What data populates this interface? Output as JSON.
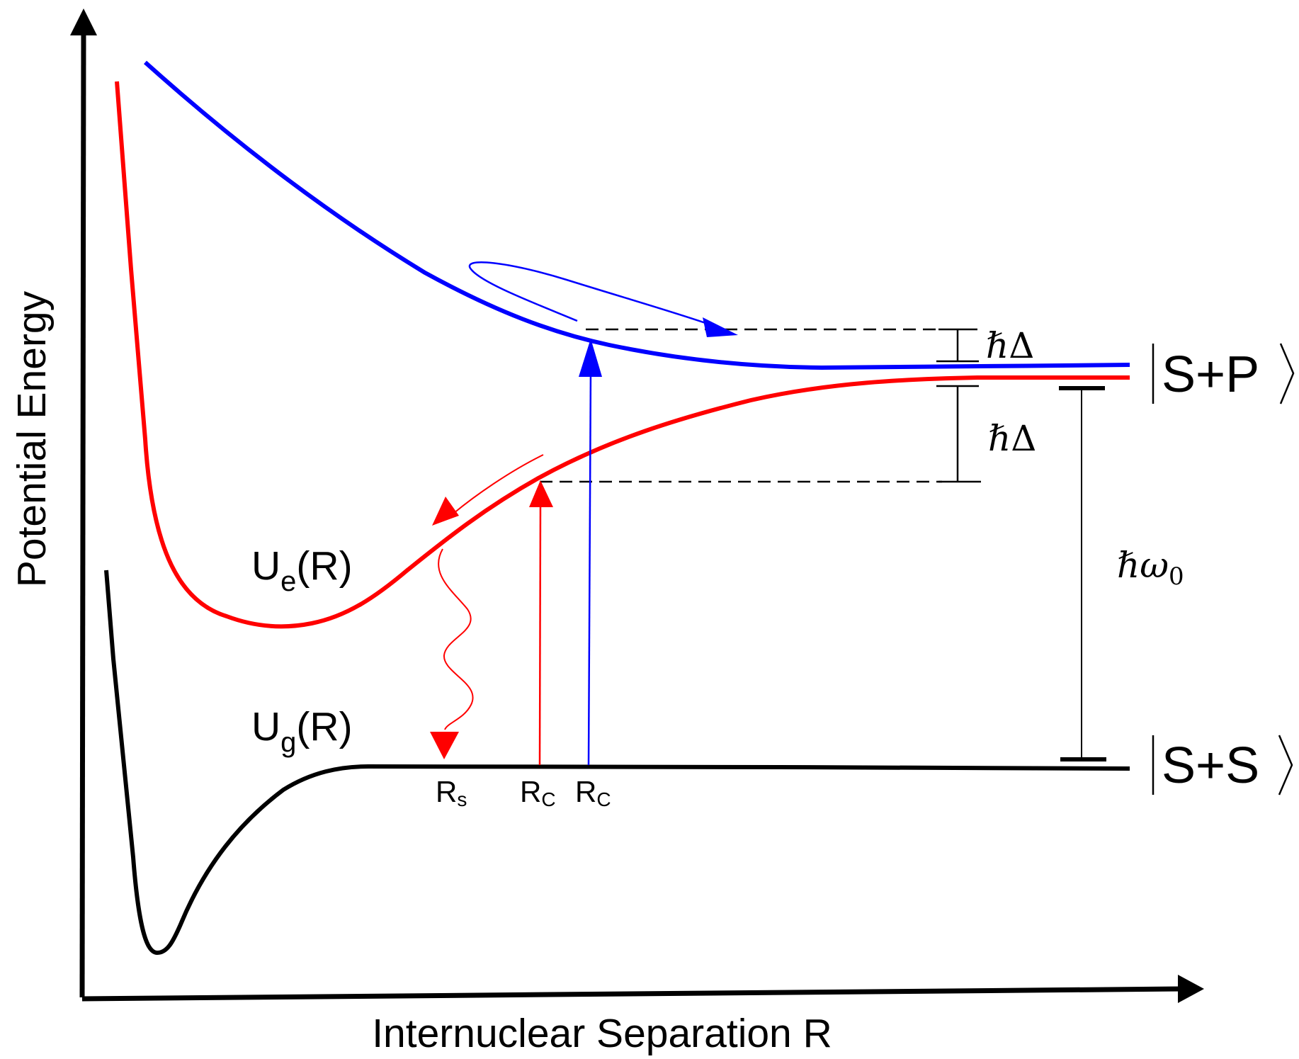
{
  "axes": {
    "y_label": "Potential Energy",
    "x_label": "Internuclear Separation R"
  },
  "curves": {
    "excited": {
      "base": "U",
      "sub": "e",
      "arg": "(R)",
      "color": "#ff0000"
    },
    "ground": {
      "base": "U",
      "sub": "g",
      "arg": "(R)",
      "color": "#000000"
    },
    "repulsive": {
      "color": "#0000ff"
    }
  },
  "states": {
    "upper": {
      "text": "S+P"
    },
    "lower": {
      "text": "S+S"
    }
  },
  "markers": {
    "rs": {
      "base": "R",
      "sub": "s"
    },
    "rc_red": {
      "base": "R",
      "sub": "C"
    },
    "rc_blue": {
      "base": "R",
      "sub": "C"
    }
  },
  "energies": {
    "detuning_upper": {
      "hbar": "ℏ",
      "sym": "Δ"
    },
    "detuning_lower": {
      "hbar": "ℏ",
      "sym": "Δ"
    },
    "transition": {
      "hbar": "ℏ",
      "sym": "ω",
      "sub": "0"
    }
  },
  "icons": {
    "y_axis_arrow": "arrow-up-icon",
    "x_axis_arrow": "arrow-right-icon"
  }
}
